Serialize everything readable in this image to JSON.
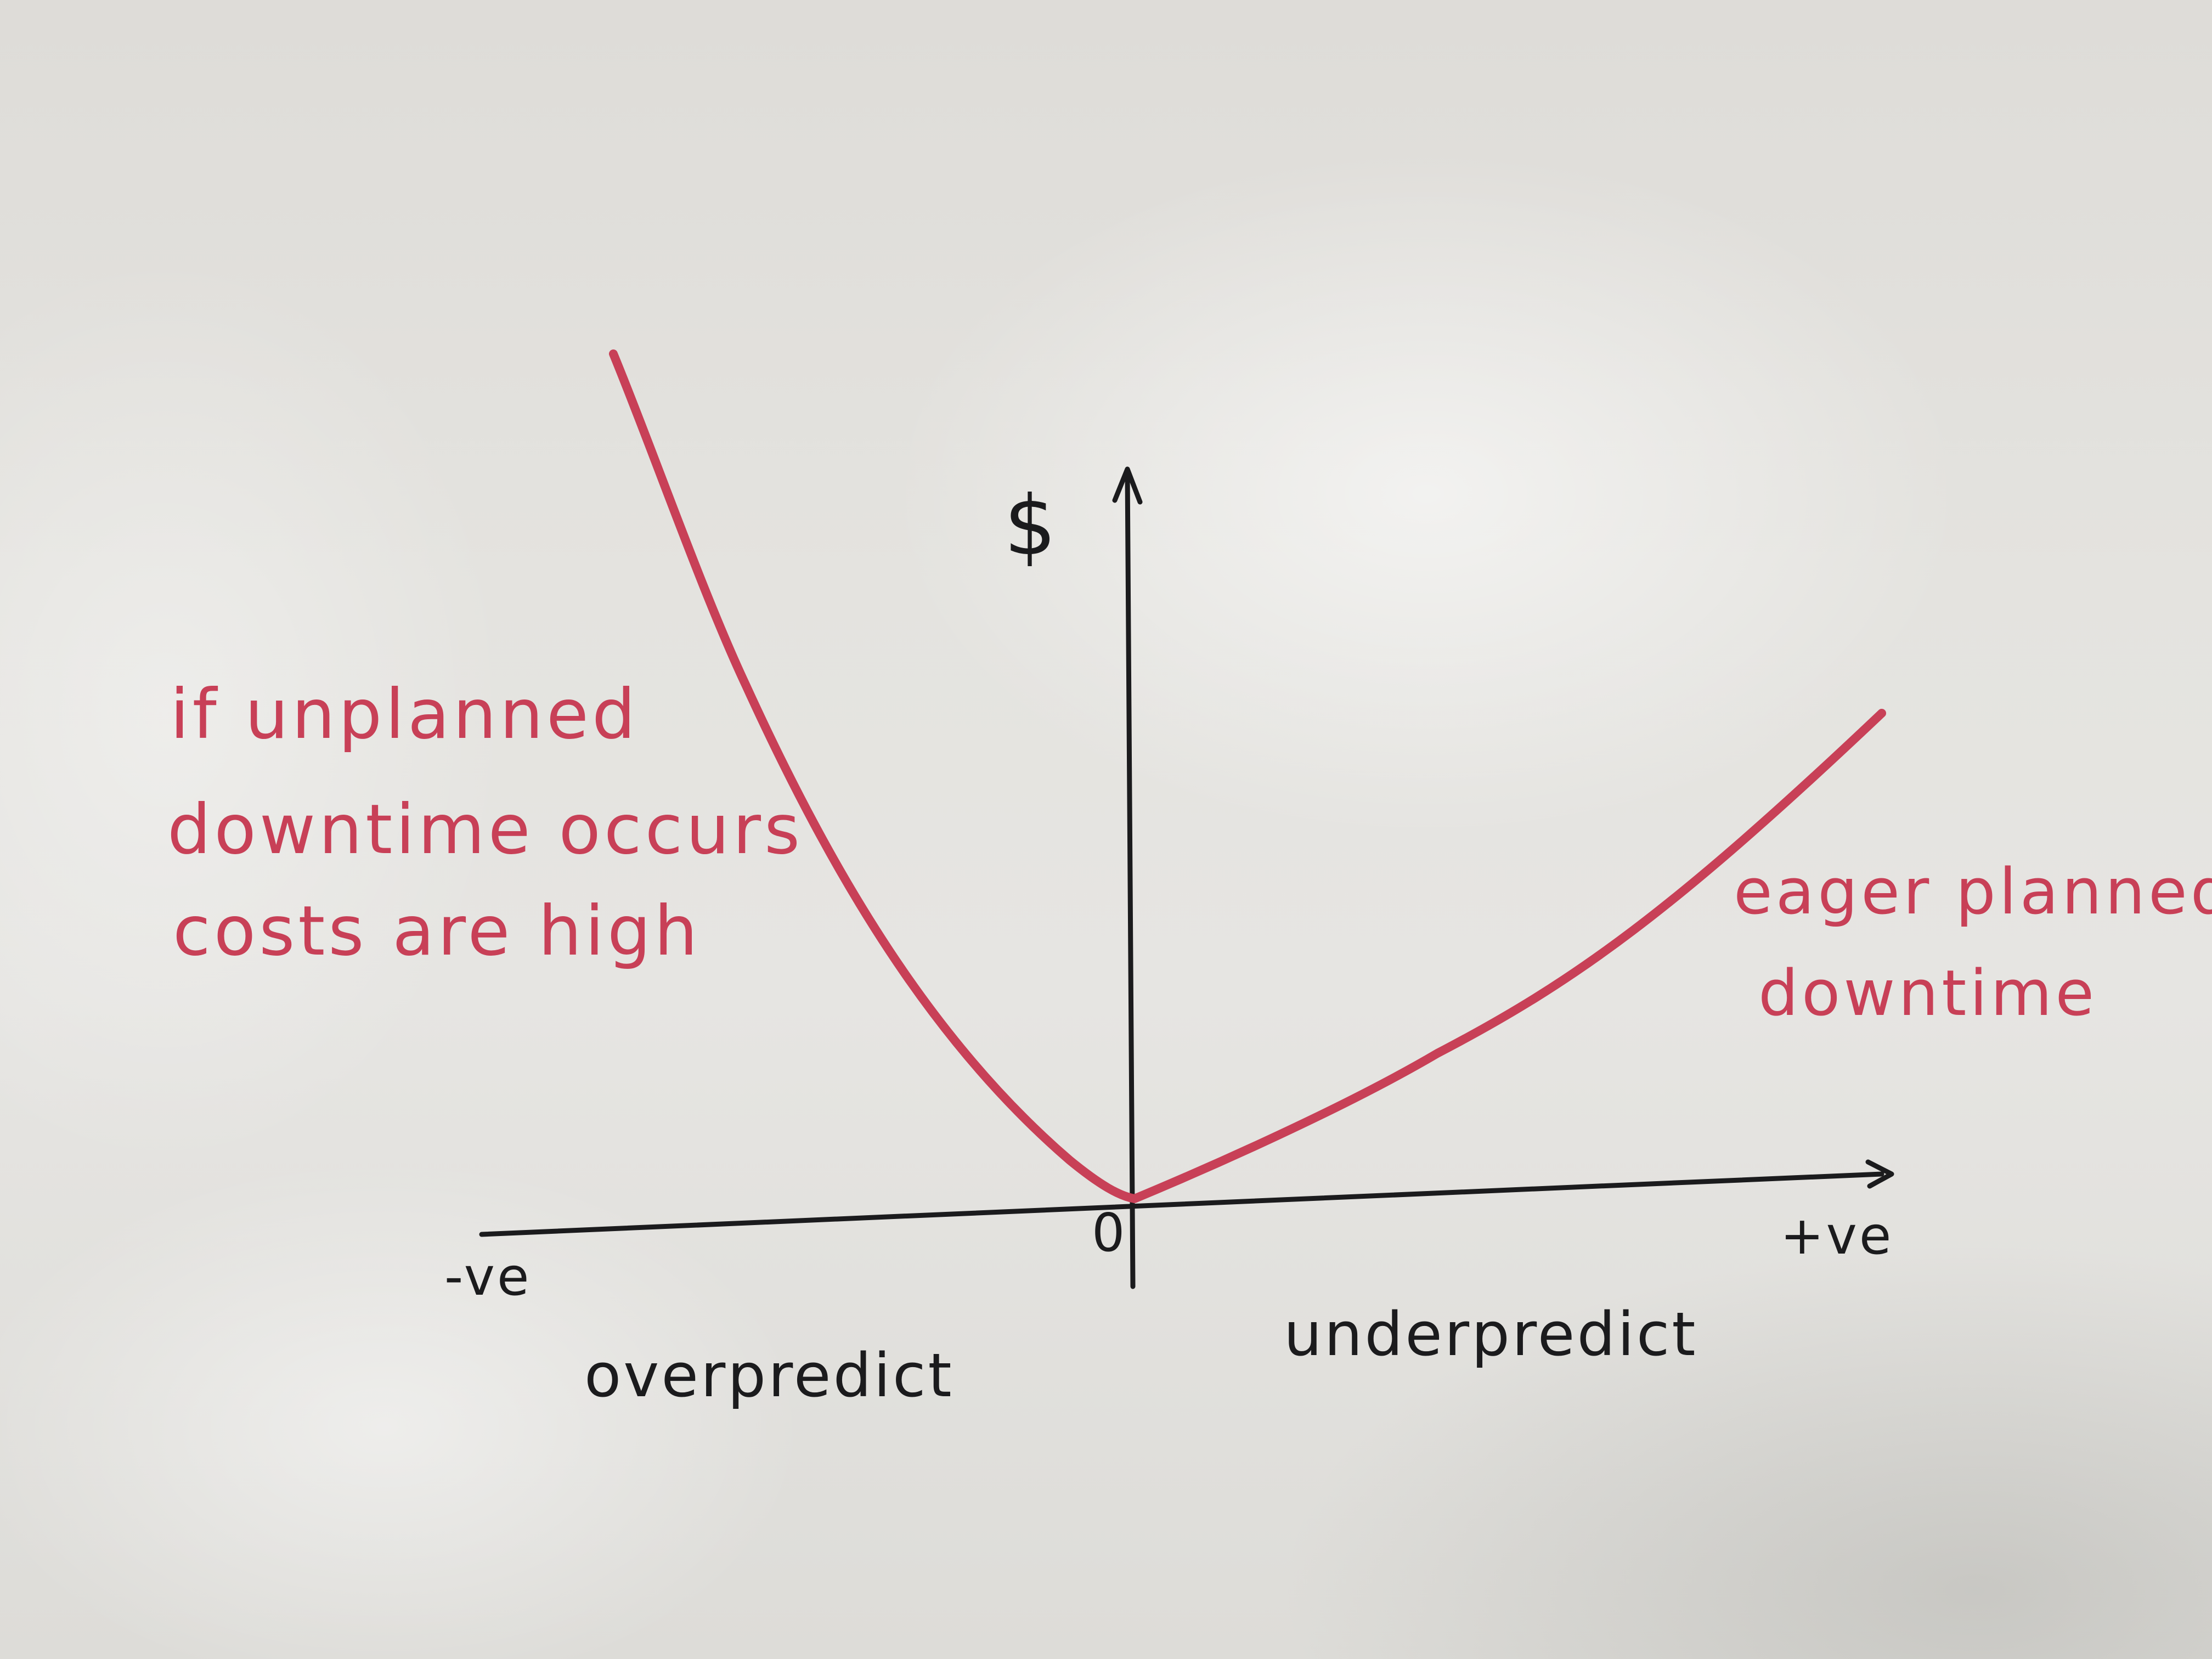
{
  "colors": {
    "board": "#e4e3df",
    "ink_black": "#1b1b1d",
    "ink_red": "#c84057"
  },
  "labels": {
    "y_axis": "$",
    "origin": "0",
    "x_negative": "-ve",
    "x_positive": "+ve",
    "left_region": "overpredict",
    "right_region": "underpredict"
  },
  "annotations": {
    "left": [
      "if unplanned",
      "downtime occurs",
      "costs are high"
    ],
    "right": [
      "eager planned",
      "downtime"
    ]
  }
}
